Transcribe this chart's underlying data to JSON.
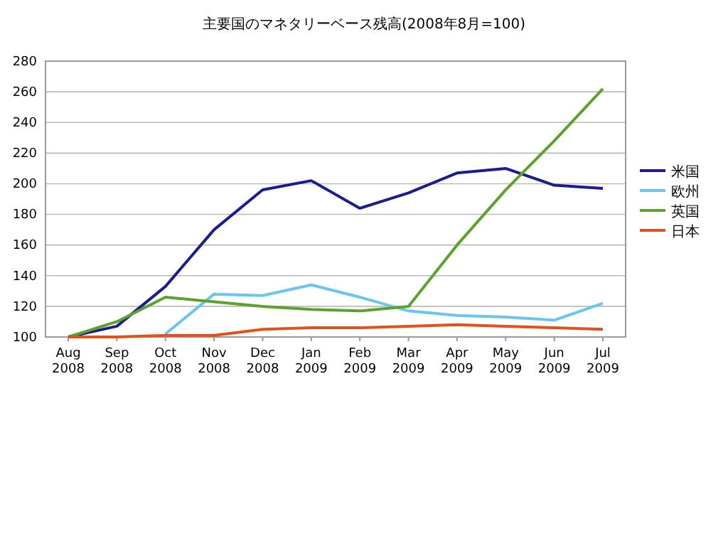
{
  "chart_data": {
    "type": "line",
    "title": "主要国のマネタリーベース残高(2008年8月=100)",
    "categories": [
      "Aug 2008",
      "Sep 2008",
      "Oct 2008",
      "Nov 2008",
      "Dec 2008",
      "Jan 2009",
      "Feb 2009",
      "Mar 2009",
      "Apr 2009",
      "May 2009",
      "Jun 2009",
      "Jul 2009"
    ],
    "series": [
      {
        "name": "米国",
        "color": "#1c1c8e",
        "values": [
          100,
          107,
          133,
          170,
          196,
          202,
          184,
          194,
          207,
          210,
          199,
          197
        ]
      },
      {
        "name": "欧州",
        "color": "#6cc4f0",
        "values": [
          null,
          null,
          102,
          128,
          127,
          134,
          126,
          117,
          114,
          113,
          111,
          122
        ]
      },
      {
        "name": "英国",
        "color": "#5ca22e",
        "values": [
          100,
          110,
          126,
          123,
          120,
          118,
          117,
          120,
          160,
          196,
          228,
          262
        ]
      },
      {
        "name": "日本",
        "color": "#e0521c",
        "values": [
          100,
          100,
          101,
          101,
          105,
          106,
          106,
          107,
          108,
          107,
          106,
          105
        ]
      }
    ],
    "ylim": [
      100,
      280
    ],
    "yticks": [
      100,
      120,
      140,
      160,
      180,
      200,
      220,
      240,
      260,
      280
    ],
    "grid": "y",
    "legend": "right",
    "marker": "none",
    "line_style": "solid"
  }
}
